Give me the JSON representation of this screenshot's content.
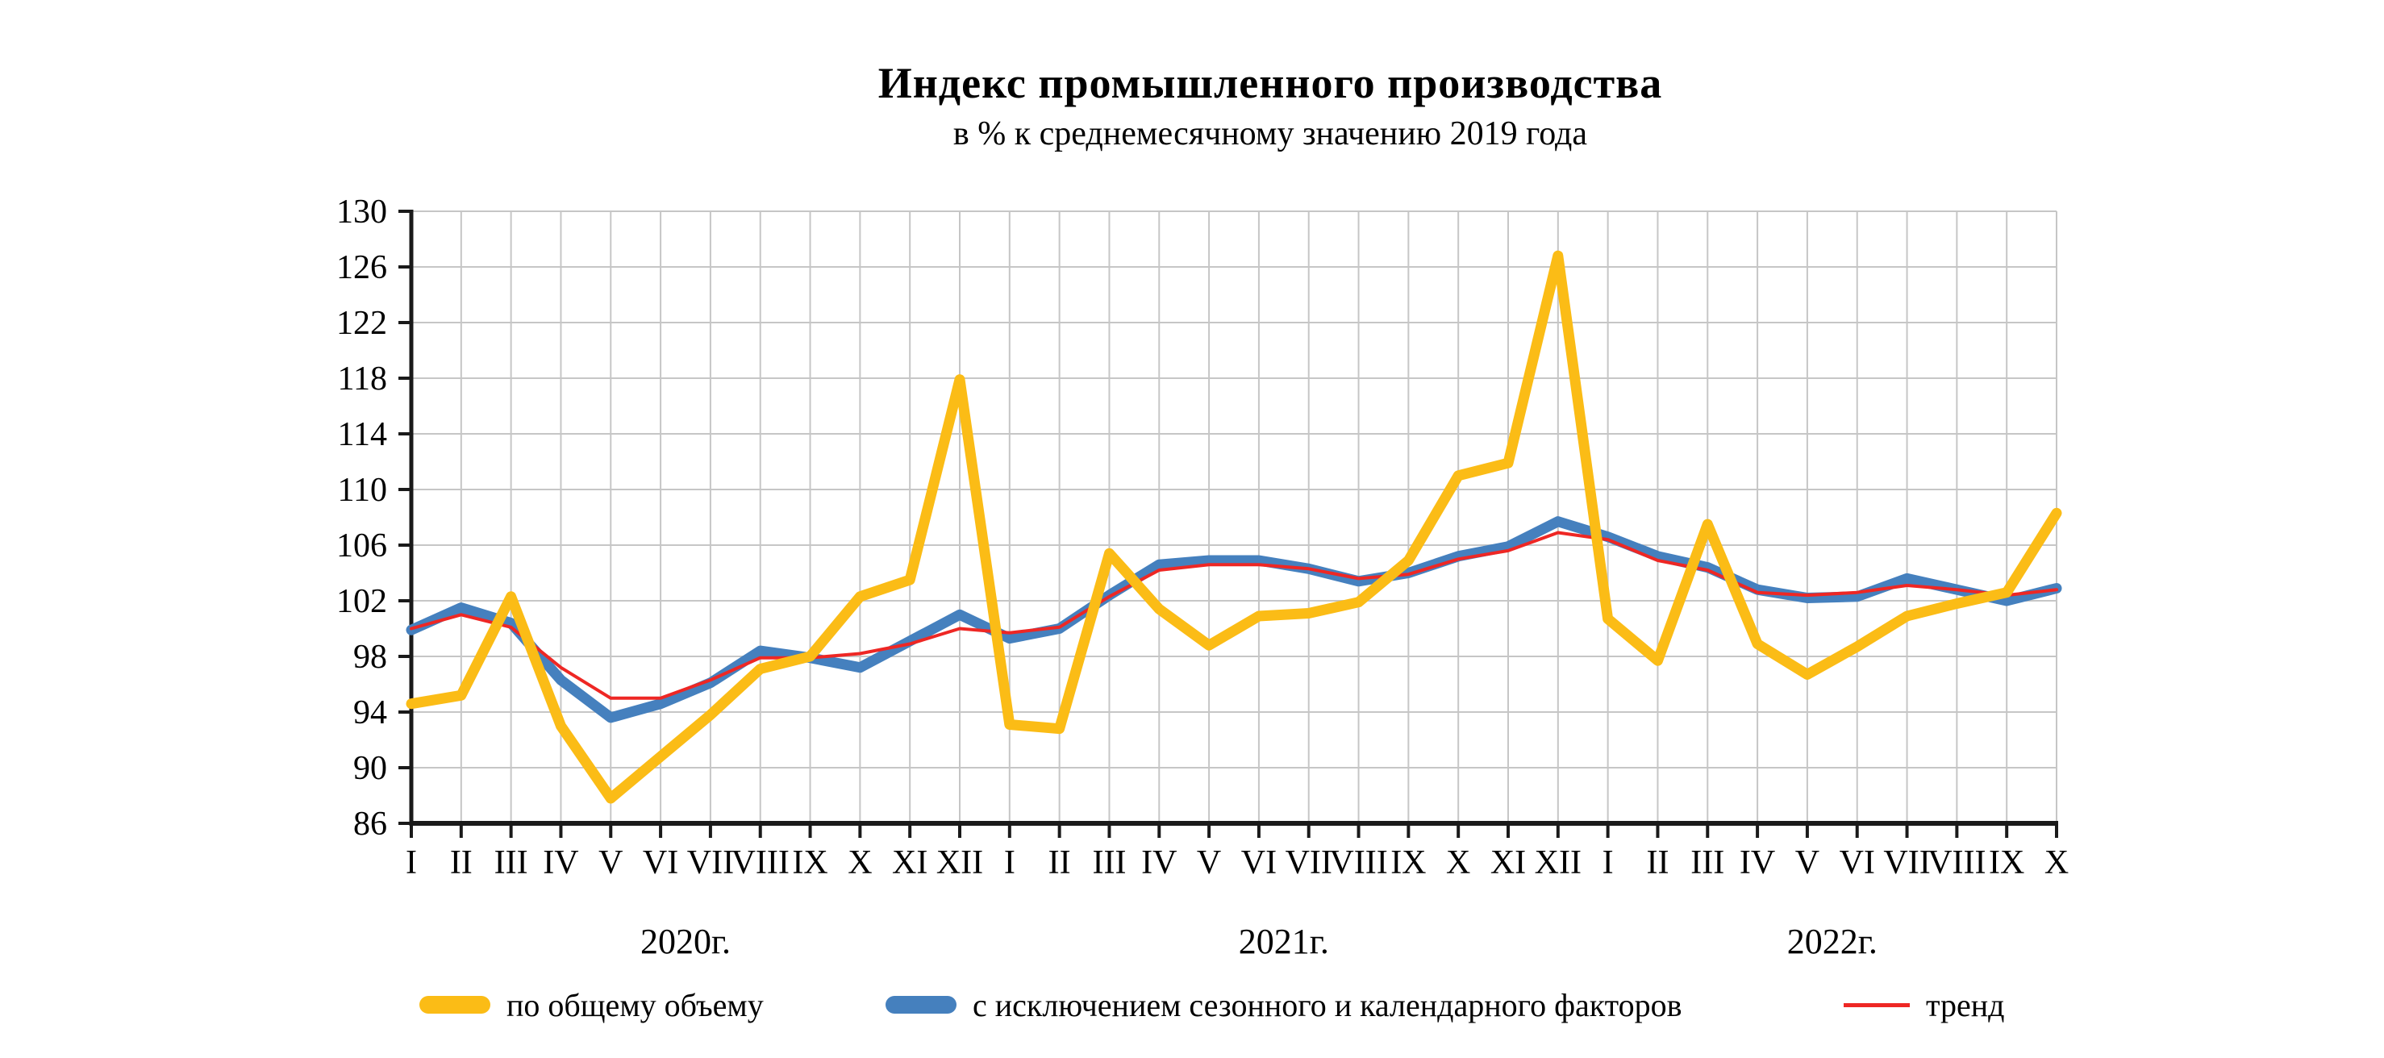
{
  "title": "Индекс промышленного производства",
  "subtitle": "в % к среднемесячному значению 2019 года",
  "colors": {
    "background": "#ffffff",
    "grid": "#c6c6c6",
    "axis": "#1a1a1a",
    "text": "#000000",
    "total": "#FBBC16",
    "seasonally_adjusted": "#4580BE",
    "trend": "#EE2724"
  },
  "legend": [
    {
      "label": "по общему объему",
      "color": "#FBBC16",
      "swatch": "thick"
    },
    {
      "label": "с исключением сезонного и календарного факторов",
      "color": "#4580BE",
      "swatch": "thick"
    },
    {
      "label": "тренд",
      "color": "#EE2724",
      "swatch": "thin"
    }
  ],
  "chart_data": {
    "type": "line",
    "title": "Индекс промышленного производства",
    "subtitle": "в % к среднемесячному значению 2019 года",
    "ylim": [
      86,
      130
    ],
    "ytick_step": 4,
    "ytick_labels": [
      "86",
      "90",
      "94",
      "98",
      "102",
      "106",
      "110",
      "114",
      "118",
      "122",
      "126",
      "130"
    ],
    "grid": true,
    "legend_position": "bottom",
    "x_groups": [
      {
        "year": "2020г.",
        "months": [
          "I",
          "II",
          "III",
          "IV",
          "V",
          "VI",
          "VII",
          "VIII",
          "IX",
          "X",
          "XI",
          "XII"
        ]
      },
      {
        "year": "2021г.",
        "months": [
          "I",
          "II",
          "III",
          "IV",
          "V",
          "VI",
          "VII",
          "VIII",
          "IX",
          "X",
          "XI",
          "XII"
        ]
      },
      {
        "year": "2022г.",
        "months": [
          "I",
          "II",
          "III",
          "IV",
          "V",
          "VI",
          "VII",
          "VIII",
          "IX",
          "X"
        ]
      }
    ],
    "series": [
      {
        "name": "по общему объему",
        "color": "#FBBC16",
        "stroke_width": 13,
        "values": [
          94.6,
          95.2,
          102.3,
          93.0,
          87.8,
          90.8,
          93.8,
          97.1,
          98.0,
          102.3,
          103.5,
          117.9,
          93.1,
          92.8,
          105.4,
          101.4,
          98.8,
          100.9,
          101.1,
          101.9,
          104.9,
          111.0,
          111.9,
          126.8,
          100.7,
          97.7,
          107.5,
          98.9,
          96.7,
          98.7,
          100.9,
          101.8,
          102.6,
          108.3
        ]
      },
      {
        "name": "с исключением сезонного и календарного факторов",
        "color": "#4580BE",
        "stroke_width": 13,
        "values": [
          99.9,
          101.5,
          100.4,
          96.3,
          93.6,
          94.6,
          96.1,
          98.4,
          97.9,
          97.2,
          99.1,
          101.0,
          99.3,
          100.0,
          102.4,
          104.6,
          104.9,
          104.9,
          104.3,
          103.4,
          104.0,
          105.2,
          105.9,
          107.7,
          106.6,
          105.2,
          104.4,
          102.8,
          102.2,
          102.3,
          103.6,
          102.8,
          102.0,
          102.9
        ]
      },
      {
        "name": "тренд",
        "color": "#EE2724",
        "stroke_width": 4,
        "values": [
          100.0,
          101.0,
          100.1,
          97.2,
          95.0,
          95.0,
          96.3,
          97.9,
          97.9,
          98.2,
          98.9,
          100.0,
          99.7,
          100.1,
          102.3,
          104.2,
          104.6,
          104.6,
          104.3,
          103.6,
          103.9,
          105.0,
          105.6,
          106.9,
          106.4,
          104.9,
          104.2,
          102.6,
          102.4,
          102.6,
          103.1,
          102.8,
          102.4,
          102.8
        ]
      }
    ]
  }
}
